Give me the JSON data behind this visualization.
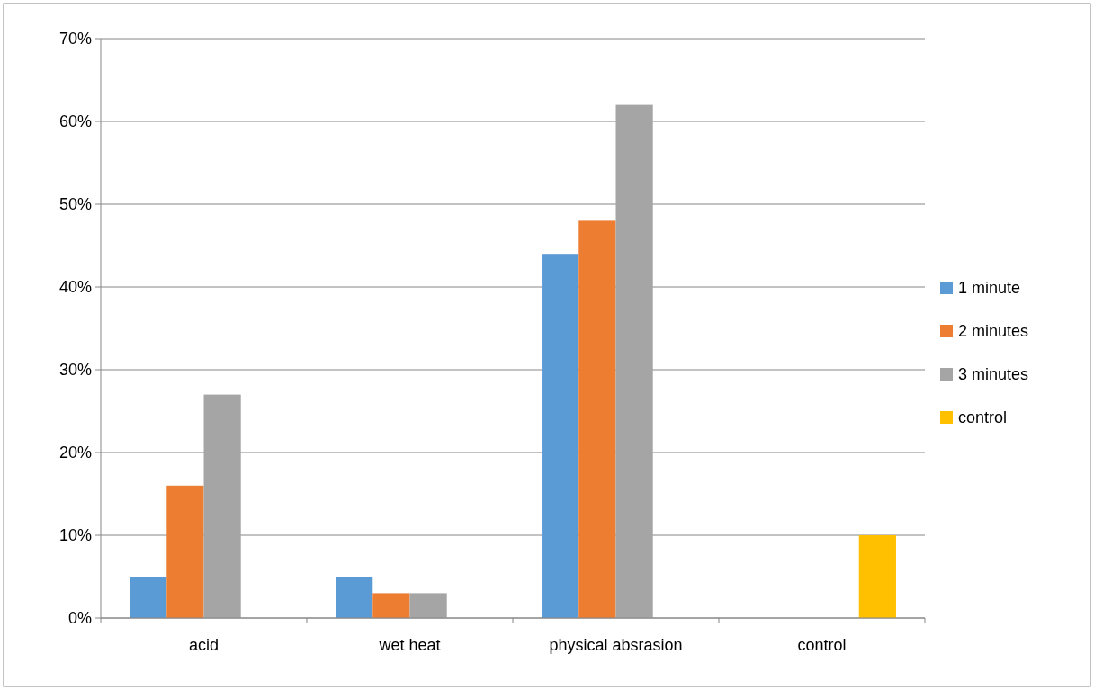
{
  "chart_data": {
    "type": "bar",
    "categories": [
      "acid",
      "wet heat",
      "physical absrasion",
      "control"
    ],
    "series": [
      {
        "name": "1 minute",
        "color": "#5b9bd5",
        "values": [
          5,
          5,
          44,
          null
        ]
      },
      {
        "name": "2 minutes",
        "color": "#ed7d31",
        "values": [
          16,
          3,
          48,
          null
        ]
      },
      {
        "name": "3 minutes",
        "color": "#a5a5a5",
        "values": [
          27,
          3,
          62,
          null
        ]
      },
      {
        "name": "control",
        "color": "#ffc000",
        "values": [
          null,
          null,
          null,
          10
        ]
      }
    ],
    "ylim": [
      0,
      70
    ],
    "yticks": [
      {
        "value": 0,
        "label": "0%"
      },
      {
        "value": 10,
        "label": "10%"
      },
      {
        "value": 20,
        "label": "20%"
      },
      {
        "value": 30,
        "label": "30%"
      },
      {
        "value": 40,
        "label": "40%"
      },
      {
        "value": 50,
        "label": "50%"
      },
      {
        "value": 60,
        "label": "60%"
      },
      {
        "value": 70,
        "label": "70%"
      }
    ],
    "grid": "y",
    "legend": "right"
  }
}
